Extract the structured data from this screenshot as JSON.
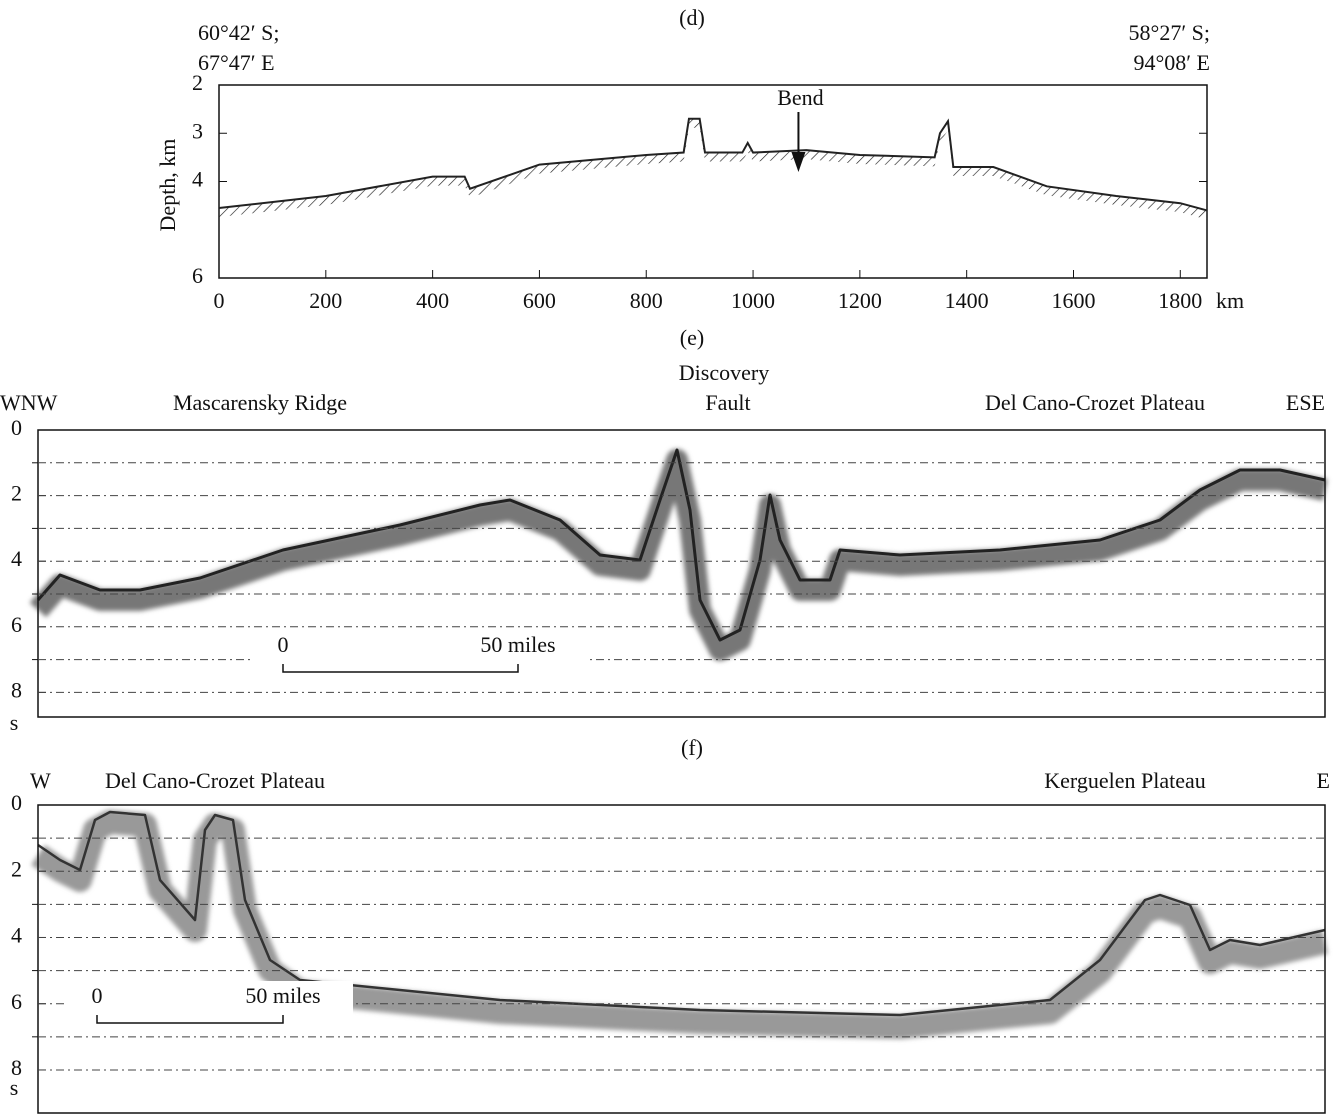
{
  "chart_data": [
    {
      "type": "line",
      "panel_label": "(d)",
      "start_coords": [
        "60°42′ S;",
        "67°47′ E"
      ],
      "end_coords": [
        "58°27′ S;",
        "94°08′ E"
      ],
      "ylabel": "Depth, km",
      "xunit": "km",
      "annotation": "Bend",
      "annotation_x": 1085,
      "x": [
        0,
        200,
        400,
        460,
        470,
        600,
        800,
        870,
        880,
        900,
        910,
        980,
        990,
        1000,
        1100,
        1200,
        1340,
        1350,
        1365,
        1375,
        1450,
        1550,
        1680,
        1800,
        1850
      ],
      "series": [
        {
          "color": "#222",
          "values": [
            4.55,
            4.3,
            3.9,
            3.9,
            4.15,
            3.65,
            3.45,
            3.4,
            2.7,
            2.7,
            3.4,
            3.4,
            3.2,
            3.4,
            3.35,
            3.45,
            3.5,
            3.0,
            2.75,
            3.7,
            3.7,
            4.1,
            4.3,
            4.45,
            4.6
          ]
        }
      ],
      "xlim": [
        0,
        1850
      ],
      "xticks": [
        0,
        200,
        400,
        600,
        800,
        1000,
        1200,
        1400,
        1600,
        1800
      ],
      "ylim": [
        2,
        6
      ],
      "yticks": [
        2,
        3,
        4,
        6
      ],
      "y_inverted": true
    },
    {
      "type": "seismic",
      "panel_label": "(e)",
      "labels": [
        "WNW",
        "Mascarensky Ridge",
        "Discovery",
        "Fault",
        "Del Cano-Crozet Plateau",
        "ESE"
      ],
      "ylabel": "s",
      "scale_bar": [
        "0",
        "50 miles"
      ],
      "ylim": [
        0,
        8.75
      ],
      "yticks": [
        0,
        2,
        4,
        6,
        8
      ],
      "minor_yticks": [
        1,
        3,
        5,
        7
      ],
      "grid": true,
      "y_inverted": true
    },
    {
      "type": "seismic",
      "panel_label": "(f)",
      "labels": [
        "W",
        "Del Cano-Crozet Plateau",
        "Kerguelen Plateau",
        "E"
      ],
      "ylabel": "s",
      "scale_bar": [
        "0",
        "50 miles"
      ],
      "ylim": [
        0,
        9.3
      ],
      "yticks": [
        0,
        2,
        4,
        6,
        8
      ],
      "minor_yticks": [
        1,
        3,
        5,
        7
      ],
      "grid": true,
      "y_inverted": true
    }
  ]
}
